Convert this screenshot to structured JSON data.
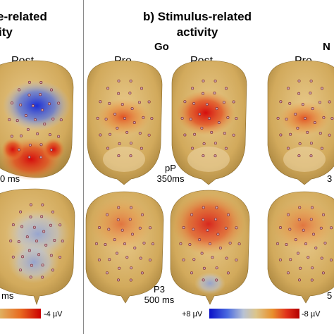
{
  "panel_a": {
    "title_line1": "e-related",
    "title_line2": "ity",
    "col_post": "Post",
    "ann_top": "0 ms",
    "ann_bottom": "ms",
    "cb_right": "-4 µV"
  },
  "panel_b": {
    "title_line1": "b) Stimulus-related",
    "title_line2": "activity",
    "cond_go": "Go",
    "cond_nogo": "N",
    "col_pre": "Pre",
    "col_post": "Post",
    "col_pre_nogo": "Pre",
    "ann_pp_1": "pP",
    "ann_pp_2": "350ms",
    "ann_p3_1": "P3",
    "ann_p3_2": "500 ms",
    "ann_right_top": "3",
    "ann_right_bottom": "5",
    "cb_left": "+8 µV",
    "cb_right": "-8 µV"
  },
  "colors": {
    "negative": "#d10000",
    "neutral": "#d9b560",
    "positive": "#1a2ed6"
  }
}
